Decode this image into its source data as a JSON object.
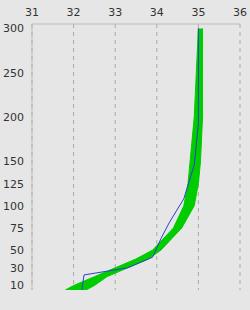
{
  "chart_data": {
    "type": "profile",
    "xlim": [
      31,
      36
    ],
    "xticks": [
      31,
      32,
      33,
      34,
      35,
      36
    ],
    "ylim": [
      5,
      305
    ],
    "yticks": [
      10,
      30,
      50,
      75,
      100,
      125,
      150,
      200,
      250,
      300
    ],
    "grid": true,
    "series": [
      {
        "type": "band",
        "color": "#00cc00",
        "depth": [
          5,
          10,
          20,
          30,
          40,
          50,
          75,
          100,
          125,
          150,
          200,
          250,
          300
        ],
        "lower": [
          31.8,
          32.0,
          32.5,
          33.0,
          33.5,
          33.9,
          34.4,
          34.65,
          34.75,
          34.8,
          34.9,
          34.95,
          35.0
        ],
        "upper": [
          32.3,
          32.5,
          32.8,
          33.3,
          33.8,
          34.1,
          34.6,
          34.9,
          35.0,
          35.05,
          35.1,
          35.1,
          35.1
        ]
      },
      {
        "type": "line",
        "color": "#2a3fd0",
        "depth": [
          5,
          22,
          30,
          42,
          63,
          81,
          108,
          146,
          193,
          253,
          300
        ],
        "values": [
          32.2,
          32.25,
          33.3,
          33.9,
          34.1,
          34.3,
          34.65,
          34.9,
          35.0,
          35.0,
          35.0
        ]
      }
    ]
  }
}
